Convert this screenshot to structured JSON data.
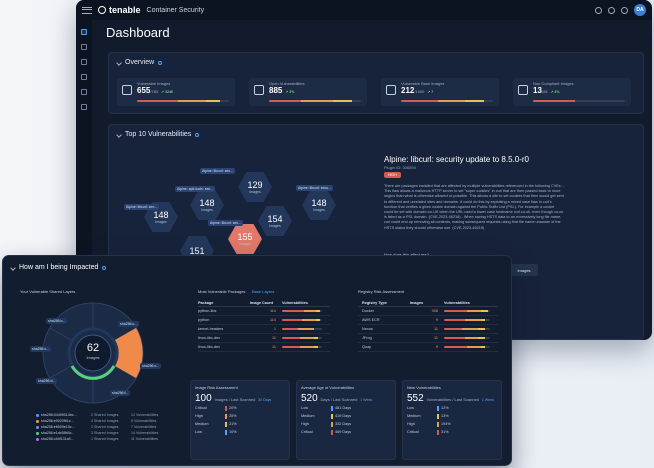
{
  "app": {
    "brand": "tenable",
    "product": "Container Security",
    "avatar": "DA"
  },
  "dashboard": {
    "title": "Dashboard"
  },
  "overview": {
    "title": "Overview",
    "cards": [
      {
        "label": "Vulnerable Images",
        "value": "655",
        "total": "/763",
        "delta": "↗ 3246"
      },
      {
        "label": "Open Vulnerabilities",
        "value": "885",
        "total": "",
        "delta": "↗ 3%"
      },
      {
        "label": "Vulnerable Base Images",
        "value": "212",
        "total": "/1000",
        "delta": "↗ 7"
      },
      {
        "label": "Non Compliant Images",
        "value": "13",
        "total": "/28",
        "delta": "↗ 4%"
      }
    ]
  },
  "top10": {
    "title": "Top 10 Vulnerabilities",
    "hexes": [
      {
        "n": "129",
        "u": "Images"
      },
      {
        "n": "148",
        "u": "Images"
      },
      {
        "n": "148",
        "u": "Images"
      },
      {
        "n": "154",
        "u": "Images"
      },
      {
        "n": "155",
        "u": "Images"
      },
      {
        "n": "151",
        "u": ""
      },
      {
        "n": "148",
        "u": "Images"
      }
    ],
    "labels": [
      "Alpine: libcurl: sec...",
      "Alpine: apk-tools: sec...",
      "Alpine: libcurl: sec...",
      "Alpine: libcurl: sec...",
      "Alpine: libcurl: secu..."
    ]
  },
  "detail": {
    "title": "Alpine: libcurl: security update to 8.5.0-r0",
    "sub": "Plugin ID: 306594",
    "severity": "HIGH",
    "desc": "There are packages installed that are affected by multiple vulnerabilities referenced in the following CVEs: - This flaw allows a malicious HTTP server to set \"super cookies\" in curl that are then passed back to more origins than what is otherwise allowed or possible. This allows a site to set cookies that then would get sent to different and unrelated sites and domains. It could do this by exploiting a mixed case flaw in curl's function that verifies a given cookie domain against the Public Suffix List (PSL). For example a cookie could be set with domain=co.UK when the URL used a lower case hostname curl.co.uk, even though co.uk is listed as a PSL domain. (CVE-2023-46218) - When saving HSTS data to an excessively long file name, curl could end up removing all contents, making subsequent requests using that file name unaware of the HSTS status they should otherwise use. (CVE-2023-46219)",
    "q": "How does this affect me?",
    "btn": "Images"
  },
  "impacted": {
    "title": "How am I being Impacted",
    "layers_title": "Your Vulnerable Shared Layers",
    "center_n": "62",
    "center_u": "Images",
    "pie_labels": [
      "sha256:b...",
      "sha256:c...",
      "sha256:c...",
      "sha256:c...",
      "sha256:d...",
      "sha256:f..."
    ],
    "legend": [
      {
        "c": "#4da3ff",
        "a": "sha256:04499014bc...",
        "b": "2 Shared Images",
        "d": "12 Vulnerabilities"
      },
      {
        "c": "#e59d4f",
        "a": "sha256:e0020f61c...",
        "b": "4 Shared Images",
        "d": "9 Vulnerabilities"
      },
      {
        "c": "#7a86ff",
        "a": "sha256:e6509e15c...",
        "b": "2 Shared Images",
        "d": "7 Vulnerabilities"
      },
      {
        "c": "#58d17e",
        "a": "sha256:e1dc58b5c...",
        "b": "3 Shared Images",
        "d": "14 Vulnerabilities"
      },
      {
        "c": "#b76ee8",
        "a": "sha256:c44f131a9...",
        "b": "1 Shared Images",
        "d": "11 Vulnerabilities"
      }
    ],
    "pkg_title": "Most Vulnerable Packages",
    "pkg_link": "Base Layers",
    "pkg_head": [
      "Package",
      "Image Count",
      "Vulnerabilities"
    ],
    "pkgs": [
      [
        "python-libs",
        "114"
      ],
      [
        "python",
        "114"
      ],
      [
        "kernel-headers",
        "1"
      ],
      [
        "linux-libc-dev",
        "11"
      ],
      [
        "linux-libc-dev",
        "11"
      ]
    ],
    "reg_title": "Registry Risk Assessment",
    "reg_head": [
      "Registry Type",
      "Images",
      "Vulnerabilities"
    ],
    "regs": [
      [
        "Docker",
        "308"
      ],
      [
        "AWS ECR",
        "9"
      ],
      [
        "Nexus",
        "11"
      ],
      [
        "JFrog",
        "11"
      ],
      [
        "Quay",
        "9"
      ]
    ],
    "risk": {
      "title": "Image Risk Assessment",
      "n": "100",
      "sub": "Images / Last Scanned",
      "dd": "30 Days",
      "rows": [
        [
          "Critical",
          "20%",
          "#d65a4f"
        ],
        [
          "High",
          "25%",
          "#e59d4f"
        ],
        [
          "Medium",
          "21%",
          "#e6c34d"
        ],
        [
          "Low",
          "10%",
          "#4da3ff"
        ]
      ]
    },
    "age": {
      "title": "Average Age of Vulnerabilities",
      "n": "520",
      "sub": "Days / Last Scanned",
      "dd": "1 Week",
      "rows": [
        [
          "Low",
          "481",
          "Days"
        ],
        [
          "Medium",
          "419",
          "Days"
        ],
        [
          "High",
          "332",
          "Days"
        ],
        [
          "Critical",
          "469",
          "Days"
        ]
      ]
    },
    "newv": {
      "title": "New Vulnerabilities",
      "n": "552",
      "sub": "Vulnerabilities / Last Scanned",
      "dd": "1 Week",
      "rows": [
        [
          "Low",
          "12%"
        ],
        [
          "Medium",
          "13%"
        ],
        [
          "High",
          "194%"
        ],
        [
          "Critical",
          "31%"
        ]
      ]
    }
  }
}
